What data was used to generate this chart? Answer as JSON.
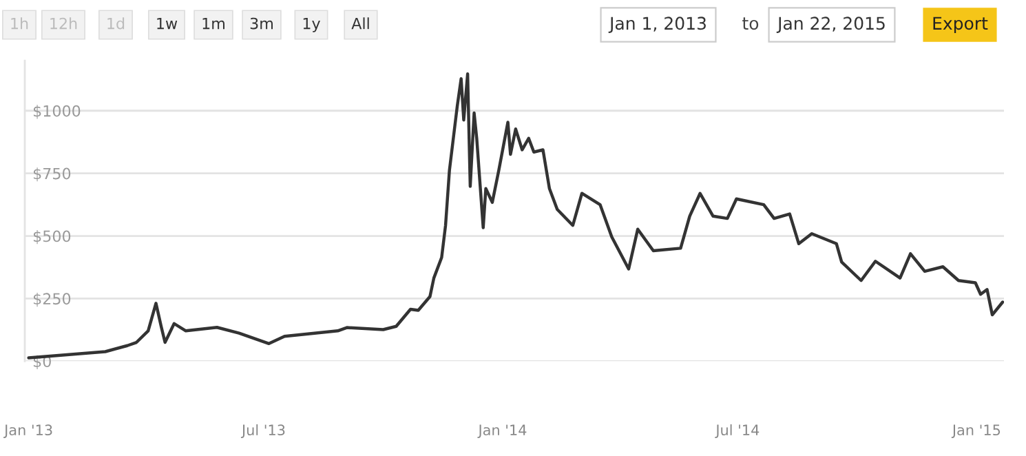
{
  "chart_data": {
    "type": "line",
    "x": [
      "2013-01-01",
      "2013-03-01",
      "2013-03-18",
      "2013-03-25",
      "2013-04-03",
      "2013-04-09",
      "2013-04-13",
      "2013-04-16",
      "2013-04-23",
      "2013-05-02",
      "2013-05-26",
      "2013-06-12",
      "2013-07-05",
      "2013-07-17",
      "2013-08-27",
      "2013-09-03",
      "2013-10-01",
      "2013-10-11",
      "2013-10-22",
      "2013-10-28",
      "2013-11-06",
      "2013-11-09",
      "2013-11-15",
      "2013-11-18",
      "2013-11-21",
      "2013-11-27",
      "2013-11-30",
      "2013-12-02",
      "2013-12-05",
      "2013-12-07",
      "2013-12-10",
      "2013-12-12",
      "2013-12-17",
      "2013-12-19",
      "2013-12-24",
      "2013-12-29",
      "2014-01-05",
      "2014-01-07",
      "2014-01-11",
      "2014-01-16",
      "2014-01-21",
      "2014-01-25",
      "2014-02-01",
      "2014-02-06",
      "2014-02-12",
      "2014-02-24",
      "2014-03-03",
      "2014-03-17",
      "2014-03-26",
      "2014-04-08",
      "2014-04-15",
      "2014-04-27",
      "2014-05-18",
      "2014-05-25",
      "2014-06-02",
      "2014-06-12",
      "2014-06-23",
      "2014-06-30",
      "2014-07-21",
      "2014-07-29",
      "2014-08-10",
      "2014-08-17",
      "2014-08-27",
      "2014-09-15",
      "2014-09-19",
      "2014-10-04",
      "2014-10-15",
      "2014-11-03",
      "2014-11-11",
      "2014-11-22",
      "2014-12-06",
      "2014-12-18",
      "2014-12-31",
      "2015-01-04",
      "2015-01-09",
      "2015-01-13",
      "2015-01-21"
    ],
    "series": [
      {
        "color": "#333333",
        "values": [
          13,
          38,
          62,
          75,
          121,
          231,
          139,
          75,
          150,
          121,
          135,
          112,
          70,
          99,
          121,
          134,
          126,
          139,
          207,
          203,
          258,
          332,
          414,
          542,
          762,
          1018,
          1128,
          963,
          1147,
          698,
          991,
          890,
          533,
          689,
          634,
          762,
          954,
          826,
          927,
          844,
          890,
          835,
          844,
          689,
          606,
          542,
          670,
          625,
          496,
          368,
          527,
          441,
          451,
          579,
          670,
          579,
          570,
          648,
          625,
          570,
          588,
          469,
          509,
          469,
          396,
          322,
          399,
          332,
          429,
          359,
          377,
          322,
          313,
          267,
          286,
          185,
          236
        ]
      }
    ],
    "xlim": [
      "2012-12-29",
      "2015-01-22"
    ],
    "xticks": [
      {
        "value": "2013-01-01",
        "label": "Jan '13"
      },
      {
        "value": "2013-07-01",
        "label": "Jul '13"
      },
      {
        "value": "2014-01-01",
        "label": "Jan '14"
      },
      {
        "value": "2014-07-01",
        "label": "Jul '14"
      },
      {
        "value": "2015-01-01",
        "label": "Jan '15"
      }
    ],
    "ylim": [
      0,
      1200
    ],
    "yticks": [
      {
        "value": 0,
        "label": "$0"
      },
      {
        "value": 250,
        "label": "$250"
      },
      {
        "value": 500,
        "label": "$500"
      },
      {
        "value": 750,
        "label": "$750"
      },
      {
        "value": 1000,
        "label": "$1000"
      }
    ],
    "grid": "y",
    "line_style": "solid",
    "annotations": [
      "1h",
      "12h",
      "1d",
      "1w",
      "1m",
      "3m",
      "1y",
      "All",
      "Jan 1, 2013",
      "to",
      "Jan 22, 2015",
      "Export"
    ]
  }
}
